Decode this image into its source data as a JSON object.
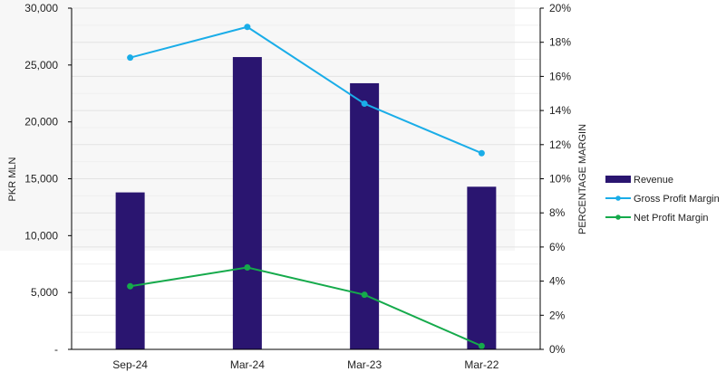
{
  "chart_data": {
    "type": "bar",
    "categories": [
      "Sep-24",
      "Mar-24",
      "Mar-23",
      "Mar-22"
    ],
    "series": [
      {
        "name": "Revenue",
        "type": "bar",
        "axis": "left",
        "values": [
          13800,
          25700,
          23400,
          14300
        ],
        "color": "#2A1570"
      },
      {
        "name": "Gross Profit Margin",
        "type": "line",
        "axis": "right",
        "values": [
          0.171,
          0.189,
          0.144,
          0.115
        ],
        "color": "#1AADE8"
      },
      {
        "name": "Net Profit Margin",
        "type": "line",
        "axis": "right",
        "values": [
          0.037,
          0.048,
          0.032,
          0.002
        ],
        "color": "#15AA4B"
      }
    ],
    "y_left": {
      "label": "PKR MLN",
      "ylim": [
        0,
        30000
      ],
      "ticks": [
        0,
        5000,
        10000,
        15000,
        20000,
        25000,
        30000
      ],
      "tick_labels": [
        "-",
        "5,000",
        "10,000",
        "15,000",
        "20,000",
        "25,000",
        "30,000"
      ]
    },
    "y_right": {
      "label": "PERCENTAGE MARGIN",
      "ylim": [
        0,
        0.2
      ],
      "ticks": [
        0,
        0.02,
        0.04,
        0.06,
        0.08,
        0.1,
        0.12,
        0.14,
        0.16,
        0.18,
        0.2
      ],
      "tick_labels": [
        "0%",
        "2%",
        "4%",
        "6%",
        "8%",
        "10%",
        "12%",
        "14%",
        "16%",
        "18%",
        "20%"
      ]
    },
    "grid": true,
    "legend_position": "right"
  }
}
